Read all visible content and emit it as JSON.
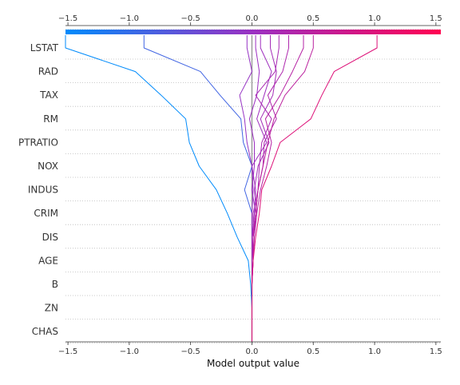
{
  "chart_data": {
    "type": "line",
    "xlabel": "Model output value",
    "xlim": [
      -1.52,
      1.54
    ],
    "base_value": 0,
    "x_ticks": [
      -1.5,
      -1.0,
      -0.5,
      0.0,
      0.5,
      1.0,
      1.5
    ],
    "x_tick_labels": [
      "−1.5",
      "−1.0",
      "−0.5",
      "0.0",
      "0.5",
      "1.0",
      "1.5"
    ],
    "colorbar": {
      "from": "#008bfb",
      "mid": "#9b30c2",
      "to": "#ff0052"
    },
    "features": [
      "LSTAT",
      "RAD",
      "TAX",
      "RM",
      "PTRATIO",
      "NOX",
      "INDUS",
      "CRIM",
      "DIS",
      "AGE",
      "B",
      "ZN",
      "CHAS"
    ],
    "series": [
      {
        "values": [
          -1.52,
          -0.95,
          -0.74,
          -0.54,
          -0.51,
          -0.43,
          -0.29,
          -0.2,
          -0.12,
          -0.03,
          -0.01,
          0.0,
          0.0
        ]
      },
      {
        "values": [
          -0.88,
          -0.42,
          -0.26,
          -0.09,
          -0.07,
          0.0,
          -0.06,
          0.0,
          0.0,
          0.0,
          0.0,
          0.0,
          0.0
        ]
      },
      {
        "values": [
          -0.04,
          0.0,
          -0.1,
          -0.06,
          -0.04,
          0.0,
          0.01,
          0.0,
          0.0,
          0.0,
          0.0,
          0.0,
          0.0
        ]
      },
      {
        "values": [
          0.03,
          0.06,
          0.04,
          -0.02,
          0.02,
          0.02,
          0.0,
          0.03,
          0.0,
          0.0,
          0.0,
          0.0,
          0.0
        ]
      },
      {
        "values": [
          0.07,
          0.16,
          0.1,
          0.04,
          0.12,
          0.0,
          0.03,
          0.02,
          0.0,
          0.0,
          0.0,
          0.0,
          0.0
        ]
      },
      {
        "values": [
          0.15,
          0.2,
          0.17,
          0.07,
          0.14,
          0.05,
          0.02,
          0.04,
          0.01,
          0.0,
          0.0,
          0.0,
          0.0
        ]
      },
      {
        "values": [
          0.22,
          0.19,
          0.03,
          0.16,
          0.08,
          0.06,
          0.05,
          0.01,
          0.01,
          0.0,
          0.0,
          0.0,
          0.0
        ]
      },
      {
        "values": [
          0.3,
          0.25,
          0.13,
          0.2,
          0.1,
          0.09,
          0.05,
          0.03,
          0.01,
          0.01,
          0.0,
          0.0,
          0.0
        ]
      },
      {
        "values": [
          0.42,
          0.33,
          0.23,
          0.11,
          0.16,
          0.12,
          0.07,
          0.04,
          0.02,
          0.01,
          0.0,
          0.0,
          0.0
        ]
      },
      {
        "values": [
          0.5,
          0.43,
          0.27,
          0.18,
          0.13,
          0.09,
          0.05,
          0.03,
          0.01,
          0.01,
          0.0,
          0.0,
          0.0
        ]
      },
      {
        "values": [
          1.02,
          0.67,
          0.57,
          0.48,
          0.23,
          0.16,
          0.08,
          0.06,
          0.03,
          0.01,
          0.0,
          0.0,
          0.0
        ]
      }
    ]
  }
}
